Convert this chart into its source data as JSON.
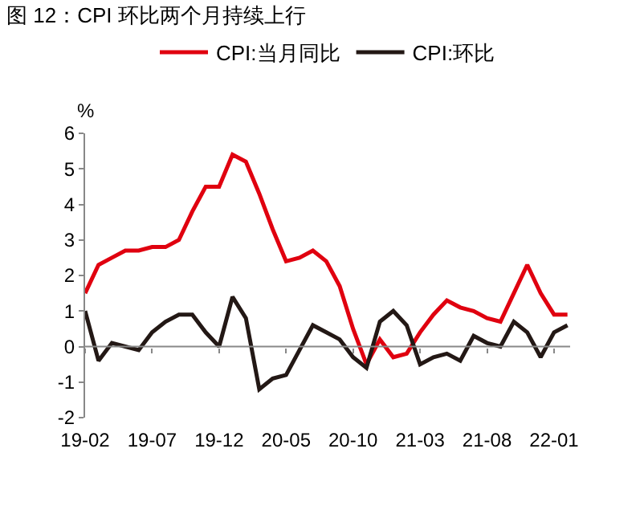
{
  "chart_data": {
    "type": "line",
    "title": "图 12：CPI 环比两个月持续上行",
    "ylabel": "%",
    "categories": [
      "19-02",
      null,
      null,
      null,
      null,
      "19-07",
      null,
      null,
      null,
      null,
      "19-12",
      null,
      null,
      null,
      null,
      "20-05",
      null,
      null,
      null,
      null,
      "20-10",
      null,
      null,
      null,
      null,
      "21-03",
      null,
      null,
      null,
      null,
      "21-08",
      null,
      null,
      null,
      null,
      "22-01",
      null
    ],
    "series": [
      {
        "name": "CPI:当月同比",
        "color": "#e0000f",
        "values": [
          1.5,
          2.3,
          2.5,
          2.7,
          2.7,
          2.8,
          2.8,
          3.0,
          3.8,
          4.5,
          4.5,
          5.4,
          5.2,
          4.3,
          3.3,
          2.4,
          2.5,
          2.7,
          2.4,
          1.7,
          0.5,
          -0.5,
          0.2,
          -0.3,
          -0.2,
          0.4,
          0.9,
          1.3,
          1.1,
          1.0,
          0.8,
          0.7,
          1.5,
          2.3,
          1.5,
          0.9,
          0.9
        ]
      },
      {
        "name": "CPI:环比",
        "color": "#231815",
        "values": [
          1.0,
          -0.4,
          0.1,
          0.0,
          -0.1,
          0.4,
          0.7,
          0.9,
          0.9,
          0.4,
          0.0,
          1.4,
          0.8,
          -1.2,
          -0.9,
          -0.8,
          -0.1,
          0.6,
          0.4,
          0.2,
          -0.3,
          -0.6,
          0.7,
          1.0,
          0.6,
          -0.5,
          -0.3,
          -0.2,
          -0.4,
          0.3,
          0.1,
          0.0,
          0.7,
          0.4,
          -0.3,
          0.4,
          0.6
        ]
      }
    ],
    "ylim": [
      -2,
      6
    ],
    "yticks": [
      -2,
      -1,
      0,
      1,
      2,
      3,
      4,
      5,
      6
    ],
    "grid": false,
    "ref_lines": [
      {
        "axis": "y",
        "value": 0,
        "color": "#888888"
      }
    ],
    "legend": "top",
    "marker": "none",
    "line_style": "solid"
  }
}
